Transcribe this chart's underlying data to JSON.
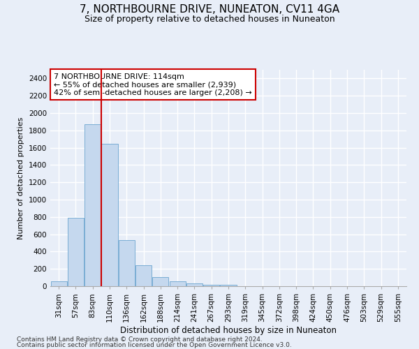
{
  "title": "7, NORTHBOURNE DRIVE, NUNEATON, CV11 4GA",
  "subtitle": "Size of property relative to detached houses in Nuneaton",
  "xlabel": "Distribution of detached houses by size in Nuneaton",
  "ylabel": "Number of detached properties",
  "categories": [
    "31sqm",
    "57sqm",
    "83sqm",
    "110sqm",
    "136sqm",
    "162sqm",
    "188sqm",
    "214sqm",
    "241sqm",
    "267sqm",
    "293sqm",
    "319sqm",
    "345sqm",
    "372sqm",
    "398sqm",
    "424sqm",
    "450sqm",
    "476sqm",
    "503sqm",
    "529sqm",
    "555sqm"
  ],
  "values": [
    55,
    790,
    1870,
    1645,
    535,
    238,
    108,
    55,
    35,
    20,
    15,
    0,
    0,
    0,
    0,
    0,
    0,
    0,
    0,
    0,
    0
  ],
  "bar_color": "#c5d8ee",
  "bar_edge_color": "#7aadd4",
  "vline_index": 3,
  "vline_color": "#cc0000",
  "ylim": [
    0,
    2500
  ],
  "yticks": [
    0,
    200,
    400,
    600,
    800,
    1000,
    1200,
    1400,
    1600,
    1800,
    2000,
    2200,
    2400
  ],
  "annotation_text": "7 NORTHBOURNE DRIVE: 114sqm\n← 55% of detached houses are smaller (2,939)\n42% of semi-detached houses are larger (2,208) →",
  "annotation_box_facecolor": "#ffffff",
  "annotation_box_edgecolor": "#cc0000",
  "footer_line1": "Contains HM Land Registry data © Crown copyright and database right 2024.",
  "footer_line2": "Contains public sector information licensed under the Open Government Licence v3.0.",
  "bg_color": "#e8eef8",
  "grid_color": "#ffffff",
  "title_fontsize": 11,
  "subtitle_fontsize": 9,
  "ylabel_fontsize": 8,
  "xlabel_fontsize": 8.5,
  "tick_fontsize": 7.5,
  "annot_fontsize": 8,
  "footer_fontsize": 6.5
}
